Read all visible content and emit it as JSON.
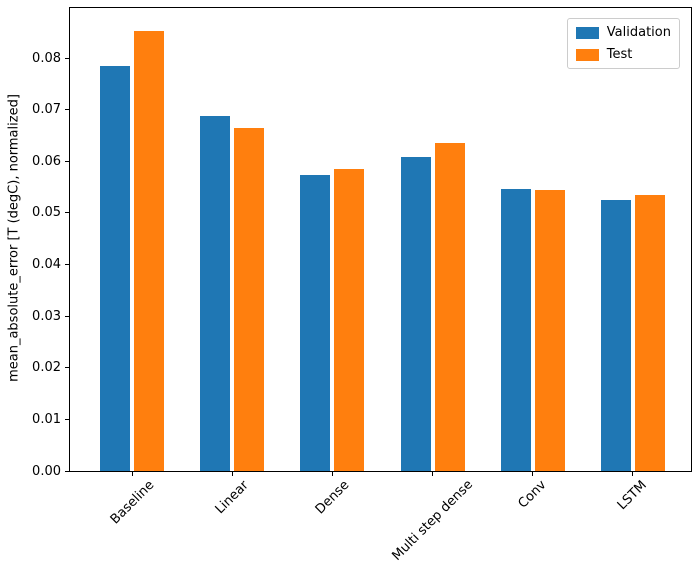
{
  "figure": {
    "background": "#ffffff",
    "axes_edge_color": "#000000"
  },
  "chart_data": {
    "type": "bar",
    "title": "",
    "xlabel": "",
    "ylabel": "mean_absolute_error [T (degC), normalized]",
    "categories": [
      "Baseline",
      "Linear",
      "Dense",
      "Multi step dense",
      "Conv",
      "LSTM"
    ],
    "series": [
      {
        "name": "Validation",
        "color": "#1f77b4",
        "values": [
          0.0785,
          0.0687,
          0.0574,
          0.0608,
          0.0546,
          0.0525
        ]
      },
      {
        "name": "Test",
        "color": "#ff7f0e",
        "values": [
          0.0852,
          0.0664,
          0.0585,
          0.0635,
          0.0544,
          0.0534
        ]
      }
    ],
    "ylim": [
      0,
      0.0897
    ],
    "xlim": [
      -0.62,
      5.58
    ],
    "yticks": [
      0,
      0.01,
      0.02,
      0.03,
      0.04,
      0.05,
      0.06,
      0.07,
      0.08
    ],
    "ytick_labels": [
      "0.00",
      "0.01",
      "0.02",
      "0.03",
      "0.04",
      "0.05",
      "0.06",
      "0.07",
      "0.08"
    ],
    "bar_width": 0.3,
    "bar_offset": 0.17,
    "x_tick_rotation": 45,
    "grid": false,
    "legend": {
      "position": "upper right",
      "entries": [
        "Validation",
        "Test"
      ]
    }
  }
}
